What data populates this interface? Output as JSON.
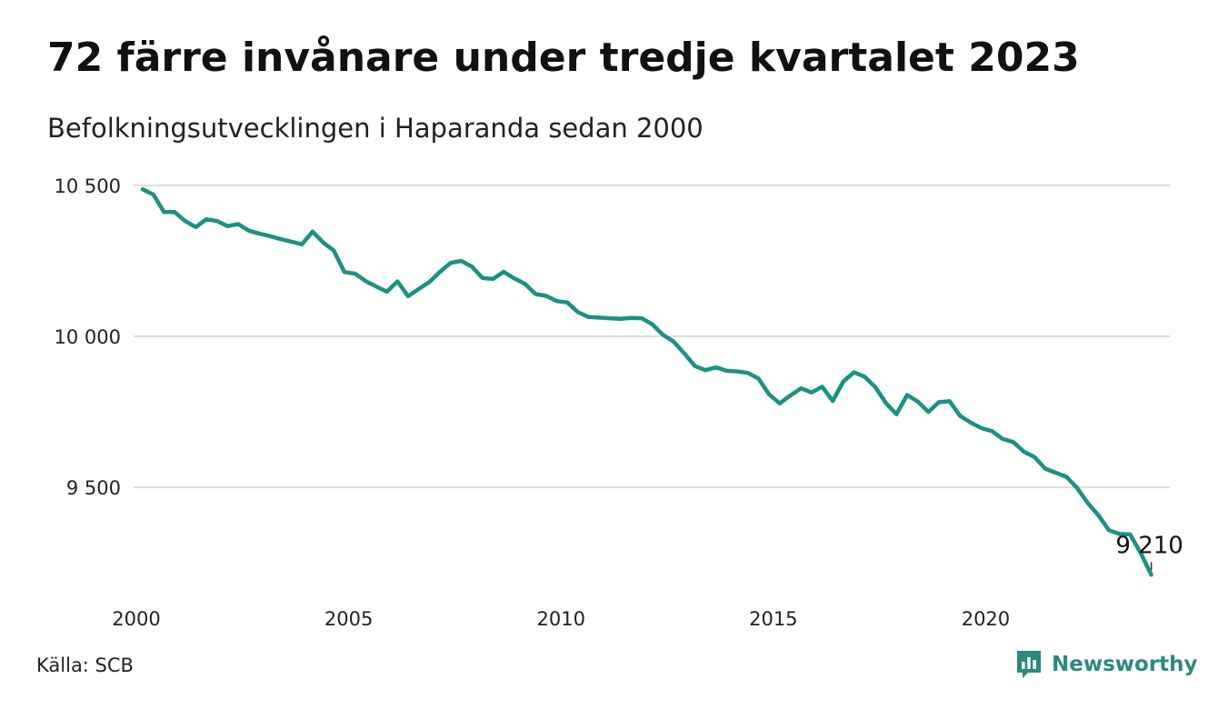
{
  "title": "72 färre invånare under tredje kvartalet 2023",
  "subtitle": "Befolkningsutvecklingen i Haparanda sedan 2000",
  "source": "Källa: SCB",
  "brand": {
    "name": "Newsworthy",
    "color": "#2a8a7e",
    "icon": "newsworthy-logo-icon"
  },
  "colors": {
    "line": "#1a9183",
    "grid": "#dddddd",
    "axis_text": "#222222"
  },
  "chart_data": {
    "type": "line",
    "title": "72 färre invånare under tredje kvartalet 2023",
    "subtitle": "Befolkningsutvecklingen i Haparanda sedan 2000",
    "xlabel": "",
    "ylabel": "",
    "x_unit": "year (quarterly data)",
    "xlim": [
      2000,
      2024.25
    ],
    "ylim": [
      9175,
      10500
    ],
    "x_ticks": [
      2000,
      2005,
      2010,
      2015,
      2020
    ],
    "x_tick_labels": [
      "2000",
      "2005",
      "2010",
      "2015",
      "2020"
    ],
    "y_ticks": [
      9500,
      10000,
      10500
    ],
    "y_tick_labels": [
      "9 500",
      "10 000",
      "10 500"
    ],
    "grid": "horizontal",
    "legend": "none",
    "annotations": [
      {
        "x": 2023.75,
        "y": 9210,
        "text": "9 210"
      }
    ],
    "series": [
      {
        "x": [
          2000.0,
          2000.25,
          2000.5,
          2000.75,
          2001.0,
          2001.25,
          2001.5,
          2001.75,
          2002.0,
          2002.25,
          2002.5,
          2002.75,
          2003.0,
          2003.25,
          2003.5,
          2003.75,
          2004.0,
          2004.25,
          2004.5,
          2004.75,
          2005.0,
          2005.25,
          2005.5,
          2005.75,
          2006.0,
          2006.25,
          2006.5,
          2006.75,
          2007.0,
          2007.25,
          2007.5,
          2007.75,
          2008.0,
          2008.25,
          2008.5,
          2008.75,
          2009.0,
          2009.25,
          2009.5,
          2009.75,
          2010.0,
          2010.25,
          2010.5,
          2010.75,
          2011.0,
          2011.25,
          2011.5,
          2011.75,
          2012.0,
          2012.25,
          2012.5,
          2012.75,
          2013.0,
          2013.25,
          2013.5,
          2013.75,
          2014.0,
          2014.25,
          2014.5,
          2014.75,
          2015.0,
          2015.25,
          2015.5,
          2015.75,
          2016.0,
          2016.25,
          2016.5,
          2016.75,
          2017.0,
          2017.25,
          2017.5,
          2017.75,
          2018.0,
          2018.25,
          2018.5,
          2018.75,
          2019.0,
          2019.25,
          2019.5,
          2019.75,
          2020.0,
          2020.25,
          2020.5,
          2020.75,
          2021.0,
          2021.25,
          2021.5,
          2021.75,
          2022.0,
          2022.25,
          2022.5,
          2022.75,
          2023.0,
          2023.25,
          2023.5,
          2023.75
        ],
        "values": [
          10487,
          10470,
          10412,
          10412,
          10382,
          10362,
          10388,
          10382,
          10365,
          10372,
          10350,
          10340,
          10332,
          10322,
          10314,
          10305,
          10347,
          10311,
          10284,
          10213,
          10208,
          10183,
          10165,
          10148,
          10182,
          10133,
          10157,
          10180,
          10214,
          10243,
          10250,
          10231,
          10193,
          10190,
          10214,
          10192,
          10174,
          10140,
          10134,
          10117,
          10112,
          10080,
          10064,
          10062,
          10060,
          10058,
          10061,
          10060,
          10040,
          10005,
          9983,
          9944,
          9902,
          9888,
          9897,
          9886,
          9884,
          9879,
          9860,
          9808,
          9778,
          9804,
          9828,
          9814,
          9833,
          9786,
          9851,
          9881,
          9866,
          9832,
          9779,
          9742,
          9806,
          9784,
          9750,
          9782,
          9785,
          9736,
          9714,
          9696,
          9686,
          9660,
          9650,
          9618,
          9600,
          9562,
          9548,
          9535,
          9498,
          9448,
          9408,
          9358,
          9345,
          9344,
          9282,
          9210
        ]
      }
    ]
  }
}
